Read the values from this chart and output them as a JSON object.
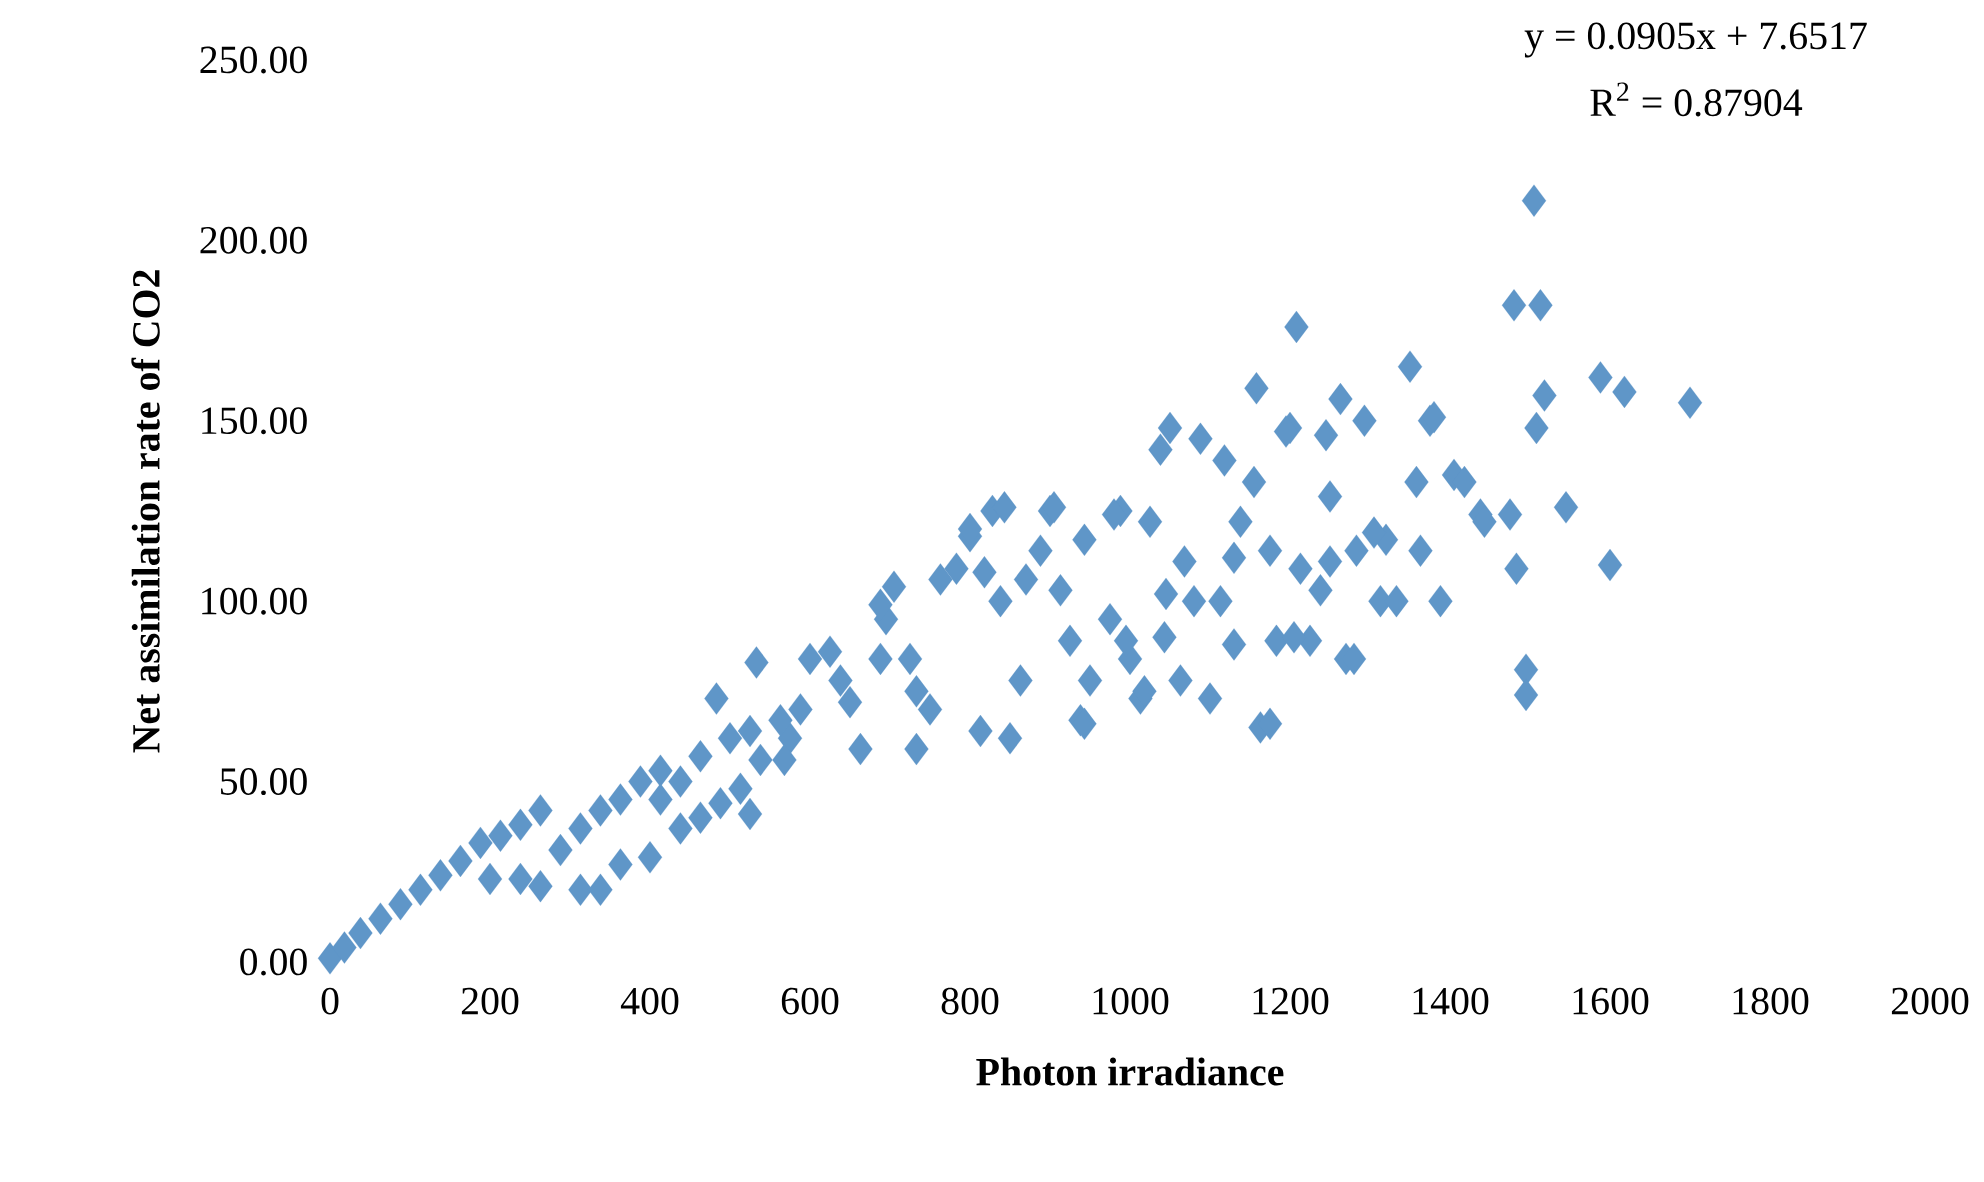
{
  "chart_data": {
    "type": "scatter",
    "xlabel": "Photon irradiance",
    "ylabel": "Net assimilation rate of CO2",
    "annotations": [
      "y = 0.0905x + 7.6517",
      "R$^{2}$ = 0.87904"
    ],
    "x": [
      0,
      18,
      38,
      63,
      88,
      113,
      138,
      163,
      188,
      213,
      238,
      263,
      200,
      238,
      263,
      313,
      338,
      288,
      313,
      338,
      363,
      388,
      413,
      363,
      400,
      438,
      463,
      488,
      463,
      500,
      525,
      483,
      533,
      538,
      575,
      588,
      600,
      638,
      650,
      663,
      688,
      695,
      705,
      725,
      733,
      733,
      750,
      763,
      783,
      800,
      813,
      828,
      838,
      850,
      863,
      888,
      900,
      913,
      925,
      938,
      950,
      975,
      988,
      1000,
      1013,
      1025,
      1038,
      1043,
      1050,
      1063,
      1068,
      1080,
      1088,
      1100,
      1113,
      1118,
      1130,
      1138,
      1155,
      1158,
      1163,
      1175,
      1183,
      1200,
      1208,
      1213,
      1225,
      1238,
      1250,
      1263,
      1270,
      1283,
      1293,
      1313,
      1320,
      1333,
      1350,
      1358,
      1363,
      1375,
      1388,
      1405,
      1418,
      1438,
      1475,
      1480,
      1483,
      1495,
      1495,
      1505,
      1513,
      1508,
      1518,
      1545,
      1588,
      1600,
      1618,
      1700,
      413,
      438,
      513,
      525,
      563,
      568,
      625,
      688,
      843,
      905,
      800,
      980,
      943,
      818,
      870,
      995,
      1018,
      1130,
      1205,
      1280,
      1175,
      943,
      1305,
      1250,
      1045,
      1195,
      1245,
      1380,
      1443
    ],
    "series": [
      {
        "color": "#5f96c8",
        "values": [
          1,
          4,
          8,
          12,
          16,
          20,
          24,
          28,
          33,
          35,
          38,
          42,
          23,
          23,
          21,
          20,
          20,
          31,
          37,
          42,
          45,
          50,
          53,
          27,
          29,
          37,
          40,
          44,
          57,
          62,
          64,
          73,
          83,
          56,
          62,
          70,
          84,
          78,
          72,
          59,
          84,
          95,
          104,
          84,
          75,
          59,
          70,
          106,
          109,
          118,
          64,
          125,
          100,
          62,
          78,
          114,
          125,
          103,
          89,
          67,
          78,
          95,
          125,
          84,
          73,
          122,
          142,
          90,
          148,
          78,
          111,
          100,
          145,
          73,
          100,
          139,
          112,
          122,
          133,
          159,
          65,
          114,
          89,
          148,
          176,
          109,
          89,
          103,
          129,
          156,
          84,
          114,
          150,
          100,
          117,
          100,
          165,
          133,
          114,
          150,
          100,
          135,
          133,
          124,
          124,
          182,
          109,
          81,
          74,
          211,
          182,
          148,
          157,
          126,
          162,
          110,
          158,
          155,
          45,
          50,
          48,
          41,
          67,
          56,
          86,
          99,
          126,
          126,
          120,
          124,
          117,
          108,
          106,
          89,
          75,
          88,
          90,
          84,
          66,
          66,
          119,
          111,
          102,
          147,
          146,
          151,
          122
        ]
      }
    ],
    "xlim": [
      0,
      2000
    ],
    "xticks": [
      0,
      200,
      400,
      600,
      800,
      1000,
      1200,
      1400,
      1600,
      1800,
      2000
    ],
    "ylim": [
      0,
      250
    ],
    "yticks": [
      {
        "value": 0,
        "label": "0.00"
      },
      {
        "value": 50,
        "label": "50.00"
      },
      {
        "value": 100,
        "label": "100.00"
      },
      {
        "value": 150,
        "label": "150.00"
      },
      {
        "value": 200,
        "label": "200.00"
      },
      {
        "value": 250,
        "label": "250.00"
      }
    ],
    "marker": "diamond"
  }
}
